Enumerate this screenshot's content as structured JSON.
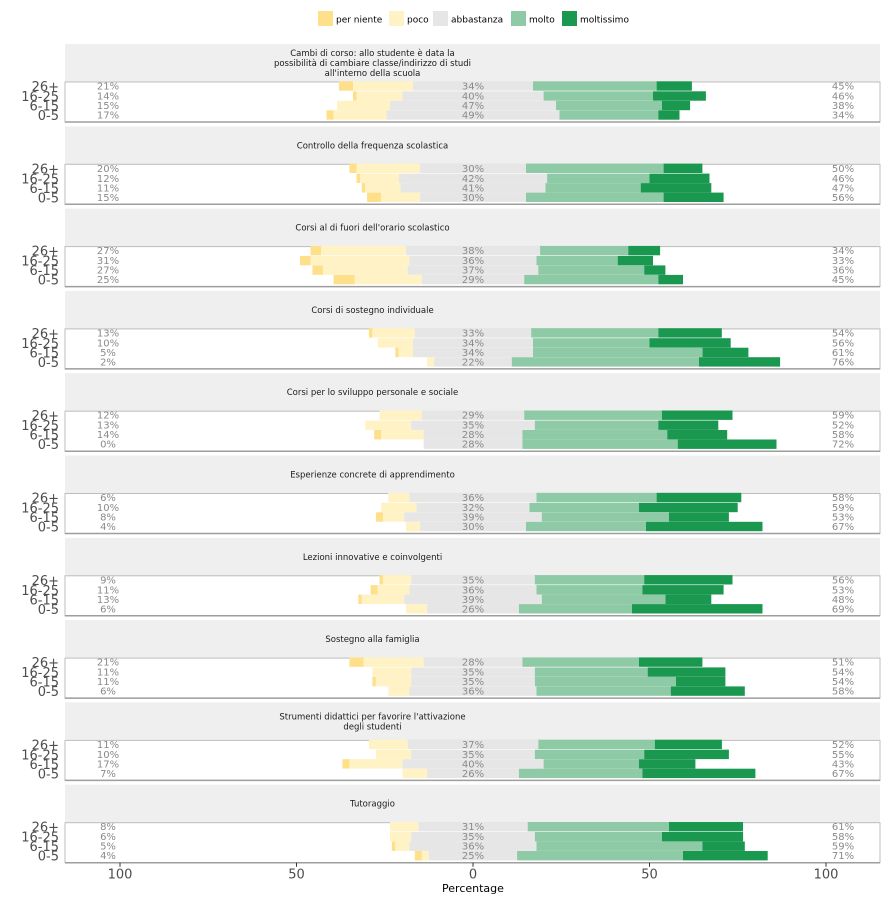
{
  "chart_data": {
    "type": "bar",
    "subtype": "diverging-stacked-horizontal-faceted",
    "xlabel": "Percentage",
    "x_ticks": [
      100,
      50,
      0,
      50,
      100
    ],
    "legend": {
      "position": "top",
      "entries": [
        {
          "name": "per niente",
          "color": "#fee08b"
        },
        {
          "name": "poco",
          "color": "#fff2c5"
        },
        {
          "name": "abbastanza",
          "color": "#e6e6e6"
        },
        {
          "name": "molto",
          "color": "#8fcaa6"
        },
        {
          "name": "moltissimo",
          "color": "#1a9850"
        }
      ]
    },
    "categories": [
      "26+",
      "16-25",
      "6-15",
      "0-5"
    ],
    "facets": [
      {
        "title": [
          "Cambi di corso: allo studente è data la",
          "possibilità di cambiare classe/indirizzo di studi",
          "all'interno della scuola"
        ],
        "rows": [
          {
            "group": "26+",
            "segments": [
              4,
              17,
              34,
              35,
              10
            ],
            "left_label": "21%",
            "mid_label": "34%",
            "right_label": "45%"
          },
          {
            "group": "16-25",
            "segments": [
              1,
              13,
              40,
              31,
              15
            ],
            "left_label": "14%",
            "mid_label": "40%",
            "right_label": "46%"
          },
          {
            "group": "6-15",
            "segments": [
              0,
              15,
              47,
              30,
              8
            ],
            "left_label": "15%",
            "mid_label": "47%",
            "right_label": "38%"
          },
          {
            "group": "0-5",
            "segments": [
              2,
              15,
              49,
              28,
              6
            ],
            "left_label": "17%",
            "mid_label": "49%",
            "right_label": "34%"
          }
        ]
      },
      {
        "title": [
          "Controllo della frequenza scolastica"
        ],
        "rows": [
          {
            "group": "26+",
            "segments": [
              2,
              18,
              30,
              39,
              11
            ],
            "left_label": "20%",
            "mid_label": "30%",
            "right_label": "50%"
          },
          {
            "group": "16-25",
            "segments": [
              1,
              11,
              42,
              29,
              17
            ],
            "left_label": "12%",
            "mid_label": "42%",
            "right_label": "46%"
          },
          {
            "group": "6-15",
            "segments": [
              1,
              10,
              41,
              27,
              20
            ],
            "left_label": "11%",
            "mid_label": "41%",
            "right_label": "47%"
          },
          {
            "group": "0-5",
            "segments": [
              4,
              11,
              30,
              39,
              17
            ],
            "left_label": "15%",
            "mid_label": "30%",
            "right_label": "56%"
          }
        ]
      },
      {
        "title": [
          "Corsi al di fuori dell'orario scolastico"
        ],
        "rows": [
          {
            "group": "26+",
            "segments": [
              3,
              24,
              38,
              25,
              9
            ],
            "left_label": "27%",
            "mid_label": "38%",
            "right_label": "34%"
          },
          {
            "group": "16-25",
            "segments": [
              3,
              28,
              36,
              23,
              10
            ],
            "left_label": "31%",
            "mid_label": "36%",
            "right_label": "33%"
          },
          {
            "group": "6-15",
            "segments": [
              3,
              24,
              37,
              30,
              6
            ],
            "left_label": "27%",
            "mid_label": "37%",
            "right_label": "36%"
          },
          {
            "group": "0-5",
            "segments": [
              6,
              19,
              29,
              38,
              7
            ],
            "left_label": "25%",
            "mid_label": "29%",
            "right_label": "45%"
          }
        ]
      },
      {
        "title": [
          "Corsi di sostegno individuale"
        ],
        "rows": [
          {
            "group": "26+",
            "segments": [
              1,
              12,
              33,
              36,
              18
            ],
            "left_label": "13%",
            "mid_label": "33%",
            "right_label": "54%"
          },
          {
            "group": "16-25",
            "segments": [
              0,
              10,
              34,
              33,
              23
            ],
            "left_label": "10%",
            "mid_label": "34%",
            "right_label": "56%"
          },
          {
            "group": "6-15",
            "segments": [
              1,
              4,
              34,
              48,
              13
            ],
            "left_label": "5%",
            "mid_label": "34%",
            "right_label": "61%"
          },
          {
            "group": "0-5",
            "segments": [
              0,
              2,
              22,
              53,
              23
            ],
            "left_label": "2%",
            "mid_label": "22%",
            "right_label": "76%"
          }
        ]
      },
      {
        "title": [
          "Corsi per lo sviluppo personale e sociale"
        ],
        "rows": [
          {
            "group": "26+",
            "segments": [
              0,
              12,
              29,
              39,
              20
            ],
            "left_label": "12%",
            "mid_label": "29%",
            "right_label": "59%"
          },
          {
            "group": "16-25",
            "segments": [
              0,
              13,
              35,
              35,
              17
            ],
            "left_label": "13%",
            "mid_label": "35%",
            "right_label": "52%"
          },
          {
            "group": "6-15",
            "segments": [
              2,
              12,
              28,
              41,
              17
            ],
            "left_label": "14%",
            "mid_label": "28%",
            "right_label": "58%"
          },
          {
            "group": "0-5",
            "segments": [
              0,
              0,
              28,
              44,
              28
            ],
            "left_label": "0%",
            "mid_label": "28%",
            "right_label": "72%"
          }
        ]
      },
      {
        "title": [
          "Esperienze concrete di apprendimento"
        ],
        "rows": [
          {
            "group": "26+",
            "segments": [
              0,
              6,
              36,
              34,
              24
            ],
            "left_label": "6%",
            "mid_label": "36%",
            "right_label": "58%"
          },
          {
            "group": "16-25",
            "segments": [
              0,
              10,
              32,
              31,
              28
            ],
            "left_label": "10%",
            "mid_label": "32%",
            "right_label": "59%"
          },
          {
            "group": "6-15",
            "segments": [
              2,
              6,
              39,
              36,
              17
            ],
            "left_label": "8%",
            "mid_label": "39%",
            "right_label": "53%"
          },
          {
            "group": "0-5",
            "segments": [
              0,
              4,
              30,
              34,
              33
            ],
            "left_label": "4%",
            "mid_label": "30%",
            "right_label": "67%"
          }
        ]
      },
      {
        "title": [
          "Lezioni innovative e coinvolgenti"
        ],
        "rows": [
          {
            "group": "26+",
            "segments": [
              1,
              8,
              35,
              31,
              25
            ],
            "left_label": "9%",
            "mid_label": "35%",
            "right_label": "56%"
          },
          {
            "group": "16-25",
            "segments": [
              2,
              9,
              36,
              30,
              23
            ],
            "left_label": "11%",
            "mid_label": "36%",
            "right_label": "53%"
          },
          {
            "group": "6-15",
            "segments": [
              1,
              12,
              39,
              35,
              13
            ],
            "left_label": "13%",
            "mid_label": "39%",
            "right_label": "48%"
          },
          {
            "group": "0-5",
            "segments": [
              0,
              6,
              26,
              32,
              37
            ],
            "left_label": "6%",
            "mid_label": "26%",
            "right_label": "69%"
          }
        ]
      },
      {
        "title": [
          "Sostegno alla famiglia"
        ],
        "rows": [
          {
            "group": "26+",
            "segments": [
              4,
              17,
              28,
              33,
              18
            ],
            "left_label": "21%",
            "mid_label": "28%",
            "right_label": "51%"
          },
          {
            "group": "16-25",
            "segments": [
              0,
              11,
              35,
              32,
              22
            ],
            "left_label": "11%",
            "mid_label": "35%",
            "right_label": "54%"
          },
          {
            "group": "6-15",
            "segments": [
              1,
              10,
              35,
              40,
              14
            ],
            "left_label": "11%",
            "mid_label": "35%",
            "right_label": "54%"
          },
          {
            "group": "0-5",
            "segments": [
              0,
              6,
              36,
              38,
              21
            ],
            "left_label": "6%",
            "mid_label": "36%",
            "right_label": "58%"
          }
        ]
      },
      {
        "title": [
          "Strumenti didattici per favorire l'attivazione",
          "degli studenti"
        ],
        "rows": [
          {
            "group": "26+",
            "segments": [
              0,
              11,
              37,
              33,
              19
            ],
            "left_label": "11%",
            "mid_label": "37%",
            "right_label": "52%"
          },
          {
            "group": "16-25",
            "segments": [
              0,
              10,
              35,
              31,
              24
            ],
            "left_label": "10%",
            "mid_label": "35%",
            "right_label": "55%"
          },
          {
            "group": "6-15",
            "segments": [
              2,
              15,
              40,
              27,
              16
            ],
            "left_label": "17%",
            "mid_label": "40%",
            "right_label": "43%"
          },
          {
            "group": "0-5",
            "segments": [
              0,
              7,
              26,
              35,
              32
            ],
            "left_label": "7%",
            "mid_label": "26%",
            "right_label": "67%"
          }
        ]
      },
      {
        "title": [
          "Tutoraggio"
        ],
        "rows": [
          {
            "group": "26+",
            "segments": [
              0,
              8,
              31,
              40,
              21
            ],
            "left_label": "8%",
            "mid_label": "31%",
            "right_label": "61%"
          },
          {
            "group": "16-25",
            "segments": [
              0,
              6,
              35,
              36,
              23
            ],
            "left_label": "6%",
            "mid_label": "35%",
            "right_label": "58%"
          },
          {
            "group": "6-15",
            "segments": [
              1,
              4,
              36,
              47,
              12
            ],
            "left_label": "5%",
            "mid_label": "36%",
            "right_label": "59%"
          },
          {
            "group": "0-5",
            "segments": [
              2,
              2,
              25,
              47,
              24
            ],
            "left_label": "4%",
            "mid_label": "25%",
            "right_label": "71%"
          }
        ]
      }
    ]
  }
}
